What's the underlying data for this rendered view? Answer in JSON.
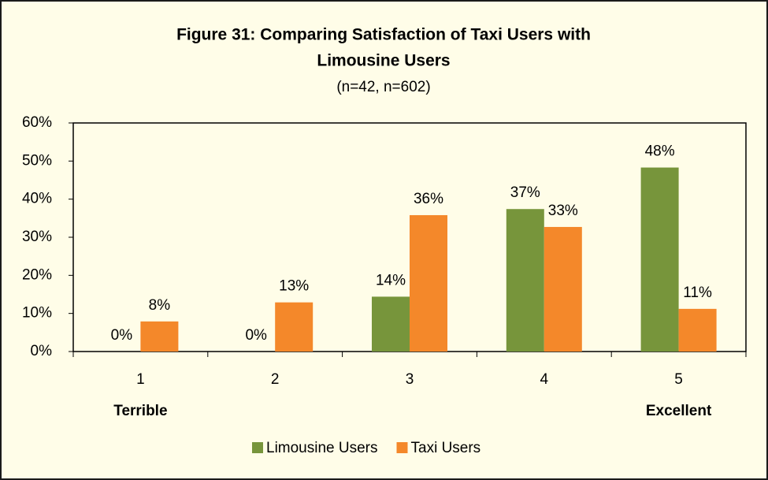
{
  "chart_data": {
    "type": "bar",
    "title": "Figure 31:  Comparing Satisfaction of  Taxi Users with Limousine Users",
    "subtitle": "(n=42, n=602)",
    "categories": [
      "1",
      "2",
      "3",
      "4",
      "5"
    ],
    "scale_labels": {
      "low": "Terrible",
      "high": "Excellent"
    },
    "series": [
      {
        "name": "Limousine Users",
        "color": "#77953b",
        "values": [
          0,
          0,
          14.4,
          37.4,
          48.3
        ],
        "value_labels": [
          "0%",
          "0%",
          "14%",
          "37%",
          "48%"
        ]
      },
      {
        "name": "Taxi Users",
        "color": "#f4882a",
        "values": [
          7.9,
          12.9,
          35.8,
          32.7,
          11.2
        ],
        "value_labels": [
          "8%",
          "13%",
          "36%",
          "33%",
          "11%"
        ]
      }
    ],
    "ylim": [
      0,
      60
    ],
    "yticks": [
      {
        "value": 0,
        "label": "0%"
      },
      {
        "value": 10,
        "label": "10%"
      },
      {
        "value": 20,
        "label": "20%"
      },
      {
        "value": 30,
        "label": "30%"
      },
      {
        "value": 40,
        "label": "40%"
      },
      {
        "value": 50,
        "label": "50%"
      },
      {
        "value": 60,
        "label": "60%"
      }
    ],
    "legend": "bottom"
  }
}
